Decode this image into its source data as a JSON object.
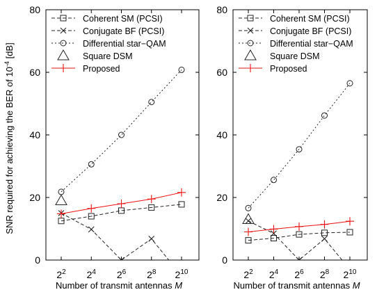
{
  "chart_data": [
    {
      "type": "line",
      "xlabel": "Number of transmit antennas M",
      "ylabel": "SNR required for achieving the BER of 10^-4 [dB]",
      "x": [
        4,
        16,
        64,
        256,
        1024
      ],
      "x_tick_labels": [
        "2^2",
        "2^4",
        "2^6",
        "2^8",
        "2^10"
      ],
      "x_scale": "log2",
      "ylim": [
        0,
        80
      ],
      "y_ticks": [
        0,
        20,
        40,
        60,
        80
      ],
      "grid": false,
      "legend_position": "top-right",
      "series": [
        {
          "name": "Coherent SM (PCSI)",
          "color": "#222222",
          "dash": "dashed",
          "marker": "square",
          "values": [
            12.5,
            14.0,
            15.8,
            16.8,
            17.8
          ]
        },
        {
          "name": "Conjugate BF (PCSI)",
          "color": "#222222",
          "dash": "dashed",
          "marker": "x",
          "values": [
            15.0,
            9.8,
            0.0,
            6.8,
            -5.0
          ]
        },
        {
          "name": "Differential star−QAM",
          "color": "#222222",
          "dash": "dotted",
          "marker": "circle",
          "values": [
            21.8,
            30.6,
            40.0,
            50.5,
            60.8
          ]
        },
        {
          "name": "Square DSM",
          "color": "#222222",
          "dash": "none",
          "marker": "triangle",
          "values": [
            19.0,
            null,
            null,
            null,
            null
          ]
        },
        {
          "name": "Proposed",
          "color": "#ee1111",
          "dash": "solid",
          "marker": "plus",
          "values": [
            14.8,
            16.5,
            18.0,
            19.5,
            21.6
          ]
        }
      ]
    },
    {
      "type": "line",
      "xlabel": "Number of transmit antennas M",
      "ylabel": "",
      "x": [
        4,
        16,
        64,
        256,
        1024
      ],
      "x_tick_labels": [
        "2^2",
        "2^4",
        "2^6",
        "2^8",
        "2^10"
      ],
      "x_scale": "log2",
      "ylim": [
        0,
        80
      ],
      "y_ticks": [
        0,
        20,
        40,
        60,
        80
      ],
      "grid": false,
      "legend_position": "top-right",
      "series": [
        {
          "name": "Coherent SM (PCSI)",
          "color": "#222222",
          "dash": "dashed",
          "marker": "square",
          "values": [
            6.3,
            7.0,
            8.2,
            8.7,
            8.9
          ]
        },
        {
          "name": "Conjugate BF (PCSI)",
          "color": "#222222",
          "dash": "dashed",
          "marker": "x",
          "values": [
            12.5,
            8.5,
            0.0,
            6.8,
            -3.0
          ]
        },
        {
          "name": "Differential star−QAM",
          "color": "#222222",
          "dash": "dotted",
          "marker": "circle",
          "values": [
            16.6,
            25.6,
            35.4,
            46.2,
            56.5
          ]
        },
        {
          "name": "Square DSM",
          "color": "#222222",
          "dash": "none",
          "marker": "triangle",
          "values": [
            13.0,
            null,
            null,
            null,
            null
          ]
        },
        {
          "name": "Proposed",
          "color": "#ee1111",
          "dash": "solid",
          "marker": "plus",
          "values": [
            9.0,
            9.9,
            10.7,
            11.4,
            12.4
          ]
        }
      ]
    }
  ]
}
